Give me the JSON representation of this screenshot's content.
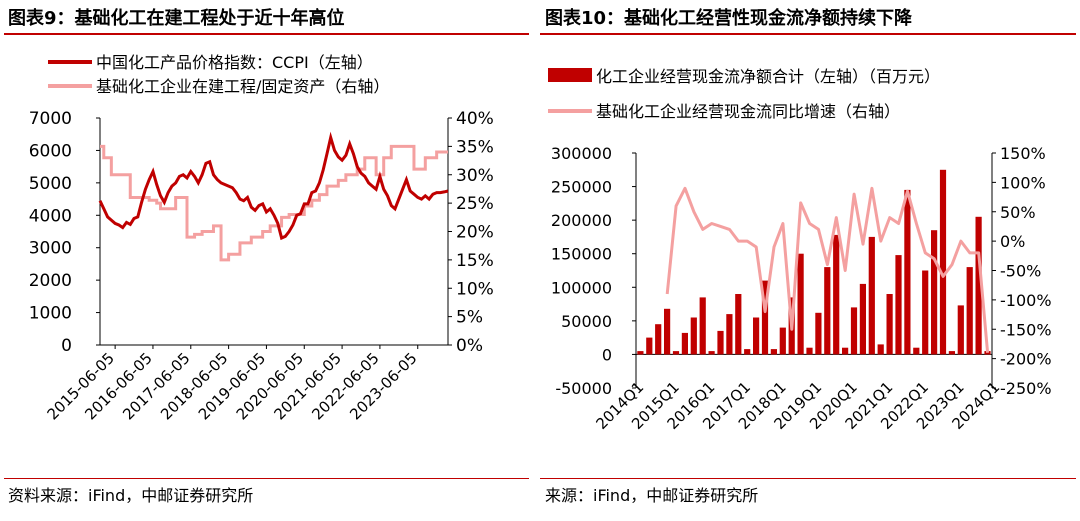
{
  "left": {
    "title": "图表9：基础化工在建工程处于近十年高位",
    "source": "资料来源：iFind，中邮证券研究所"
  },
  "right": {
    "title": "图表10：基础化工经营性现金流净额持续下降",
    "source": "来源：iFind，中邮证券研究所"
  },
  "colors": {
    "accent": "#c00000",
    "pink": "#f4a0a0"
  },
  "chart_data": [
    {
      "type": "line",
      "x_ticks": [
        "2015-06-05",
        "2016-06-05",
        "2017-06-05",
        "2018-06-05",
        "2019-06-05",
        "2020-06-05",
        "2021-06-05",
        "2022-06-05",
        "2023-06-05"
      ],
      "y_left": {
        "range": [
          0,
          7000
        ],
        "ticks": [
          "0",
          "1000",
          "2000",
          "3000",
          "4000",
          "5000",
          "6000",
          "7000"
        ]
      },
      "y_right": {
        "range": [
          0,
          40
        ],
        "ticks": [
          "0%",
          "5%",
          "10%",
          "15%",
          "20%",
          "25%",
          "30%",
          "35%",
          "40%"
        ]
      },
      "legend": "top",
      "series": [
        {
          "name": "中国化工产品价格指数：CCPI（左轴）",
          "axis": "left",
          "color": "#c00000",
          "x": [
            2015.0,
            2015.1,
            2015.2,
            2015.3,
            2015.4,
            2015.5,
            2015.6,
            2015.7,
            2015.8,
            2015.9,
            2016.0,
            2016.1,
            2016.2,
            2016.3,
            2016.4,
            2016.5,
            2016.6,
            2016.7,
            2016.8,
            2016.9,
            2017.0,
            2017.1,
            2017.2,
            2017.3,
            2017.4,
            2017.5,
            2017.6,
            2017.7,
            2017.8,
            2017.9,
            2018.0,
            2018.1,
            2018.2,
            2018.3,
            2018.4,
            2018.5,
            2018.6,
            2018.7,
            2018.8,
            2018.9,
            2019.0,
            2019.1,
            2019.2,
            2019.3,
            2019.4,
            2019.5,
            2019.6,
            2019.7,
            2019.8,
            2019.9,
            2020.0,
            2020.1,
            2020.2,
            2020.3,
            2020.4,
            2020.5,
            2020.6,
            2020.7,
            2020.8,
            2020.9,
            2021.0,
            2021.1,
            2021.2,
            2021.3,
            2021.4,
            2021.5,
            2021.6,
            2021.7,
            2021.8,
            2021.9,
            2022.0,
            2022.1,
            2022.2,
            2022.3,
            2022.4,
            2022.5,
            2022.6,
            2022.7,
            2022.8,
            2022.9,
            2023.0,
            2023.1,
            2023.2,
            2023.3,
            2023.4,
            2023.5,
            2023.6,
            2023.7,
            2023.8,
            2023.9,
            2024.0,
            2024.1,
            2024.2
          ],
          "values": [
            4450,
            4200,
            3950,
            3850,
            3750,
            3700,
            3620,
            3780,
            3720,
            3900,
            3950,
            4400,
            4800,
            5100,
            5350,
            4950,
            4600,
            4400,
            4700,
            4900,
            5000,
            5200,
            5250,
            5150,
            5350,
            5200,
            5000,
            5250,
            5600,
            5650,
            5250,
            5100,
            5000,
            4950,
            4900,
            4850,
            4700,
            4500,
            4450,
            4550,
            4250,
            4150,
            4300,
            4350,
            4100,
            4200,
            4000,
            3750,
            3300,
            3350,
            3500,
            3700,
            4000,
            4050,
            4350,
            4350,
            4700,
            4750,
            5000,
            5400,
            5900,
            6400,
            6000,
            5800,
            5700,
            5850,
            6200,
            5900,
            5500,
            5300,
            5200,
            5000,
            4900,
            4800,
            5200,
            4800,
            4600,
            4300,
            4200,
            4500,
            4800,
            5100,
            4750,
            4650,
            4550,
            4500,
            4600,
            4500,
            4650,
            4700,
            4700,
            4720,
            4750
          ]
        },
        {
          "name": "基础化工企业在建工程/固定资产（右轴）",
          "axis": "right",
          "color": "#f4a0a0",
          "x": [
            2015.0,
            2015.1,
            2015.3,
            2015.8,
            2016.3,
            2016.5,
            2016.6,
            2017.0,
            2017.3,
            2017.5,
            2017.7,
            2018.0,
            2018.2,
            2018.4,
            2018.7,
            2019.0,
            2019.3,
            2019.5,
            2019.8,
            2020.0,
            2020.4,
            2020.6,
            2020.8,
            2021.0,
            2021.3,
            2021.5,
            2021.8,
            2022.0,
            2022.3,
            2022.5,
            2022.7,
            2022.9,
            2023.3,
            2023.6,
            2023.9,
            2024.2
          ],
          "values": [
            35.0,
            33.0,
            30.0,
            26.0,
            25.5,
            25.0,
            24.0,
            26.0,
            19.0,
            19.5,
            20.0,
            21.0,
            15.0,
            16.0,
            18.0,
            19.0,
            20.0,
            21.0,
            22.5,
            23.0,
            24.5,
            25.5,
            26.5,
            28.0,
            29.0,
            30.0,
            31.0,
            33.0,
            30.0,
            33.0,
            35.0,
            35.0,
            31.0,
            33.0,
            34.0,
            34.0
          ]
        }
      ]
    },
    {
      "type": "bar",
      "x_ticks": [
        "2014Q1",
        "2015Q1",
        "2016Q1",
        "2017Q1",
        "2018Q1",
        "2019Q1",
        "2020Q1",
        "2021Q1",
        "2022Q1",
        "2023Q1",
        "2024Q1"
      ],
      "y_left": {
        "range": [
          -50000,
          300000
        ],
        "ticks": [
          "-50000",
          "0",
          "50000",
          "100000",
          "150000",
          "200000",
          "250000",
          "300000"
        ]
      },
      "y_right": {
        "range": [
          -250,
          150
        ],
        "ticks": [
          "-250%",
          "-200%",
          "-150%",
          "-100%",
          "-50%",
          "0%",
          "50%",
          "100%",
          "150%"
        ]
      },
      "legend": "top",
      "series": [
        {
          "name": "化工企业经营现金流净额合计（左轴）（百万元）",
          "axis": "left",
          "color": "#c00000",
          "values": [
            5000,
            25000,
            45000,
            68000,
            5000,
            32000,
            55000,
            85000,
            5000,
            35000,
            60000,
            90000,
            8000,
            55000,
            110000,
            8000,
            40000,
            85000,
            150000,
            10000,
            62000,
            130000,
            178000,
            10000,
            70000,
            105000,
            175000,
            15000,
            90000,
            148000,
            245000,
            10000,
            125000,
            185000,
            275000,
            5000,
            73000,
            130000,
            205000,
            5000
          ]
        },
        {
          "name": "基础化工企业经营现金流同比增速（右轴）",
          "axis": "right",
          "color": "#f4a0a0",
          "values": [
            -90,
            60,
            90,
            50,
            20,
            30,
            25,
            20,
            0,
            0,
            -10,
            -120,
            -10,
            30,
            -150,
            65,
            30,
            20,
            -40,
            40,
            -50,
            80,
            -5,
            90,
            0,
            40,
            30,
            85,
            30,
            -20,
            -30,
            -60,
            -40,
            0,
            -20,
            -20,
            -190
          ]
        }
      ]
    }
  ]
}
